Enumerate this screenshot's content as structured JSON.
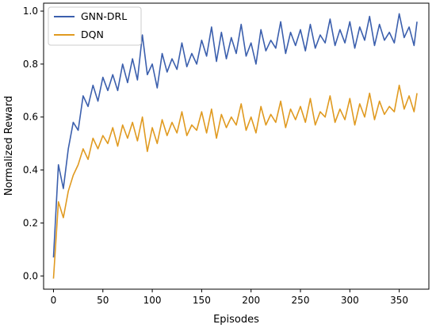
{
  "chart_data": {
    "type": "line",
    "title": "",
    "xlabel": "Episodes",
    "ylabel": "Normalized Reward",
    "xlim": [
      -10,
      380
    ],
    "ylim": [
      -0.05,
      1.03
    ],
    "xticks": [
      0,
      50,
      100,
      150,
      200,
      250,
      300,
      350
    ],
    "yticks": [
      0.0,
      0.2,
      0.4,
      0.6,
      0.8,
      1.0
    ],
    "xtick_labels": [
      "0",
      "50",
      "100",
      "150",
      "200",
      "250",
      "300",
      "350"
    ],
    "ytick_labels": [
      "0.0",
      "0.2",
      "0.4",
      "0.6",
      "0.8",
      "1.0"
    ],
    "grid": false,
    "legend_position": "top-left",
    "x": [
      0,
      5,
      10,
      15,
      20,
      25,
      30,
      35,
      40,
      45,
      50,
      55,
      60,
      65,
      70,
      75,
      80,
      85,
      90,
      95,
      100,
      105,
      110,
      115,
      120,
      125,
      130,
      135,
      140,
      145,
      150,
      155,
      160,
      165,
      170,
      175,
      180,
      185,
      190,
      195,
      200,
      205,
      210,
      215,
      220,
      225,
      230,
      235,
      240,
      245,
      250,
      255,
      260,
      265,
      270,
      275,
      280,
      285,
      290,
      295,
      300,
      305,
      310,
      315,
      320,
      325,
      330,
      335,
      340,
      345,
      350,
      355,
      360,
      365,
      368
    ],
    "series": [
      {
        "name": "GNN-DRL",
        "color": "#3b5fad",
        "values": [
          0.07,
          0.42,
          0.33,
          0.48,
          0.58,
          0.55,
          0.68,
          0.64,
          0.72,
          0.66,
          0.75,
          0.7,
          0.76,
          0.7,
          0.8,
          0.73,
          0.82,
          0.74,
          0.91,
          0.76,
          0.8,
          0.71,
          0.84,
          0.77,
          0.82,
          0.78,
          0.88,
          0.79,
          0.84,
          0.8,
          0.89,
          0.83,
          0.94,
          0.81,
          0.92,
          0.82,
          0.9,
          0.84,
          0.95,
          0.83,
          0.88,
          0.8,
          0.93,
          0.85,
          0.89,
          0.86,
          0.96,
          0.84,
          0.92,
          0.87,
          0.93,
          0.85,
          0.95,
          0.86,
          0.91,
          0.88,
          0.97,
          0.87,
          0.93,
          0.88,
          0.96,
          0.86,
          0.94,
          0.89,
          0.98,
          0.87,
          0.95,
          0.89,
          0.92,
          0.88,
          0.99,
          0.9,
          0.94,
          0.87,
          0.96
        ]
      },
      {
        "name": "DQN",
        "color": "#e09a20",
        "values": [
          -0.01,
          0.28,
          0.22,
          0.32,
          0.38,
          0.42,
          0.48,
          0.44,
          0.52,
          0.48,
          0.53,
          0.5,
          0.56,
          0.49,
          0.57,
          0.52,
          0.58,
          0.51,
          0.6,
          0.47,
          0.56,
          0.5,
          0.59,
          0.53,
          0.58,
          0.54,
          0.62,
          0.53,
          0.57,
          0.55,
          0.62,
          0.54,
          0.63,
          0.52,
          0.61,
          0.56,
          0.6,
          0.57,
          0.65,
          0.55,
          0.6,
          0.54,
          0.64,
          0.57,
          0.61,
          0.58,
          0.66,
          0.56,
          0.63,
          0.59,
          0.64,
          0.58,
          0.67,
          0.57,
          0.62,
          0.6,
          0.68,
          0.58,
          0.63,
          0.59,
          0.67,
          0.57,
          0.65,
          0.6,
          0.69,
          0.59,
          0.66,
          0.61,
          0.64,
          0.62,
          0.72,
          0.63,
          0.68,
          0.62,
          0.69
        ]
      }
    ]
  }
}
